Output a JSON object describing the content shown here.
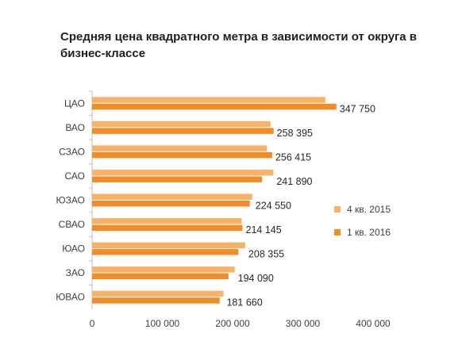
{
  "chart_data": {
    "type": "bar",
    "orientation": "horizontal",
    "title": "Средняя цена квадратного метра в зависимости от округа в бизнес-классе",
    "categories": [
      "ЦАО",
      "ВАО",
      "СЗАО",
      "САО",
      "ЮЗАО",
      "СВАО",
      "ЮАО",
      "ЗАО",
      "ЮВАО"
    ],
    "series": [
      {
        "name": "4 кв. 2015",
        "color": "#F7B267",
        "values": [
          332000,
          254000,
          249000,
          258000,
          228000,
          213000,
          218000,
          203000,
          187000
        ]
      },
      {
        "name": "1 кв. 2016",
        "color": "#F28C28",
        "values": [
          347750,
          258395,
          256415,
          241890,
          224550,
          214145,
          208355,
          194090,
          181660
        ],
        "data_labels": [
          "347 750",
          "258 395",
          "256 415",
          "241 890",
          "224 550",
          "214 145",
          "208 355",
          "194 090",
          "181 660"
        ]
      }
    ],
    "xlim": [
      0,
      400000
    ],
    "xticks": [
      0,
      100000,
      200000,
      300000,
      400000
    ],
    "xtick_labels": [
      "0",
      "100 000",
      "200 000",
      "300 000",
      "400 000"
    ],
    "xlabel": "",
    "ylabel": "",
    "grid": false,
    "legend_position": "right"
  }
}
